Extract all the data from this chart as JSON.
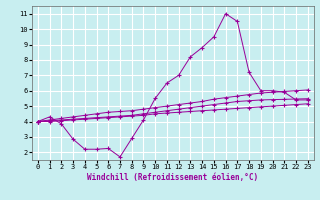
{
  "title": "",
  "xlabel": "Windchill (Refroidissement éolien,°C)",
  "ylabel": "",
  "bg_color": "#c8eef0",
  "line_color": "#990099",
  "grid_color": "#ffffff",
  "xlim": [
    -0.5,
    23.5
  ],
  "ylim": [
    1.5,
    11.5
  ],
  "xticks": [
    0,
    1,
    2,
    3,
    4,
    5,
    6,
    7,
    8,
    9,
    10,
    11,
    12,
    13,
    14,
    15,
    16,
    17,
    18,
    19,
    20,
    21,
    22,
    23
  ],
  "yticks": [
    2,
    3,
    4,
    5,
    6,
    7,
    8,
    9,
    10,
    11
  ],
  "line1_x": [
    0,
    1,
    2,
    3,
    4,
    5,
    6,
    7,
    8,
    9,
    10,
    11,
    12,
    13,
    14,
    15,
    16,
    17,
    18,
    19,
    20,
    21,
    22,
    23
  ],
  "line1_y": [
    4.0,
    4.3,
    3.85,
    2.85,
    2.2,
    2.2,
    2.25,
    1.7,
    2.9,
    4.1,
    5.5,
    6.5,
    7.0,
    8.2,
    8.8,
    9.5,
    11.0,
    10.5,
    7.2,
    6.0,
    6.0,
    5.9,
    5.4,
    5.4
  ],
  "line2_x": [
    0,
    1,
    2,
    3,
    4,
    5,
    6,
    7,
    8,
    9,
    10,
    11,
    12,
    13,
    14,
    15,
    16,
    17,
    18,
    19,
    20,
    21,
    22,
    23
  ],
  "line2_y": [
    4.0,
    4.1,
    4.2,
    4.3,
    4.4,
    4.5,
    4.6,
    4.65,
    4.7,
    4.8,
    4.9,
    5.0,
    5.1,
    5.2,
    5.3,
    5.45,
    5.55,
    5.65,
    5.75,
    5.85,
    5.9,
    5.95,
    6.0,
    6.05
  ],
  "line3_x": [
    0,
    1,
    2,
    3,
    4,
    5,
    6,
    7,
    8,
    9,
    10,
    11,
    12,
    13,
    14,
    15,
    16,
    17,
    18,
    19,
    20,
    21,
    22,
    23
  ],
  "line3_y": [
    4.0,
    4.05,
    4.1,
    4.15,
    4.2,
    4.25,
    4.3,
    4.35,
    4.4,
    4.5,
    4.6,
    4.7,
    4.8,
    4.9,
    5.0,
    5.1,
    5.2,
    5.3,
    5.35,
    5.4,
    5.42,
    5.44,
    5.46,
    5.48
  ],
  "line4_x": [
    0,
    1,
    2,
    3,
    4,
    5,
    6,
    7,
    8,
    9,
    10,
    11,
    12,
    13,
    14,
    15,
    16,
    17,
    18,
    19,
    20,
    21,
    22,
    23
  ],
  "line4_y": [
    4.0,
    4.0,
    4.05,
    4.1,
    4.15,
    4.2,
    4.25,
    4.3,
    4.35,
    4.4,
    4.5,
    4.55,
    4.6,
    4.65,
    4.7,
    4.75,
    4.8,
    4.85,
    4.9,
    4.95,
    5.0,
    5.05,
    5.1,
    5.15
  ],
  "tick_fontsize": 5,
  "xlabel_fontsize": 5.5,
  "marker_size": 2.5,
  "line_width": 0.7
}
